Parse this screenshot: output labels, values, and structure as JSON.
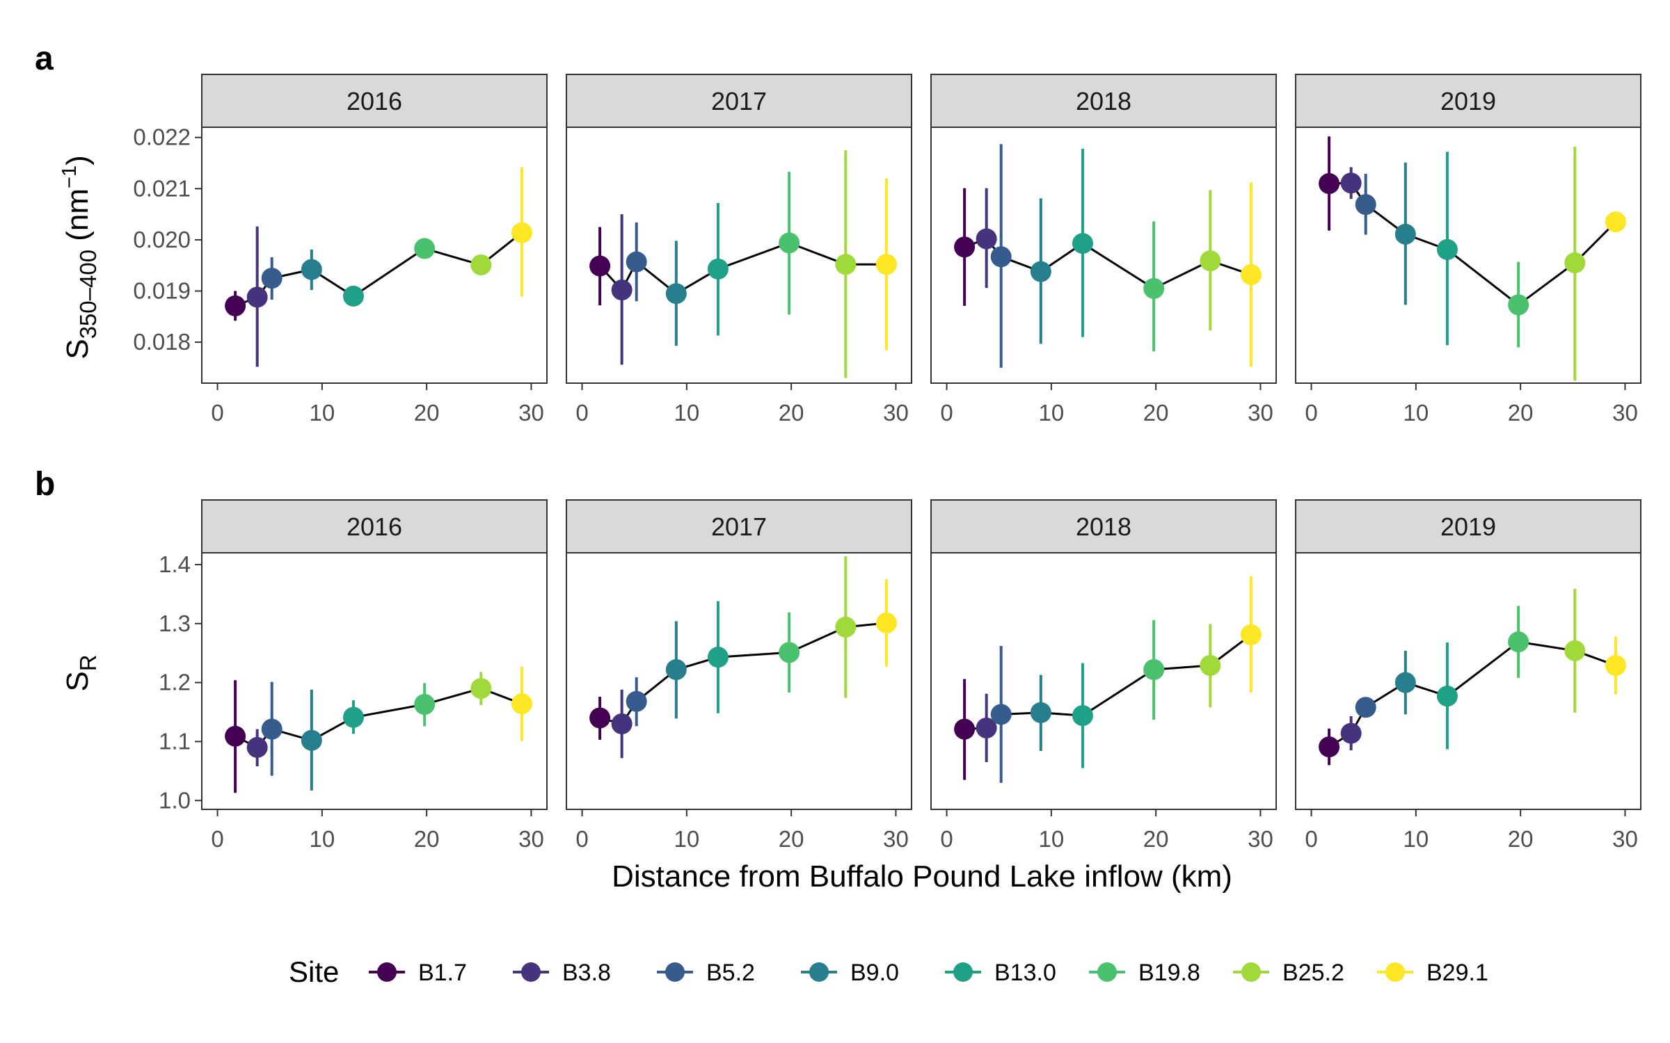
{
  "figure": {
    "panel_labels": [
      "a",
      "b"
    ],
    "x_axis_title": "Distance from Buffalo Pound Lake inflow (km)",
    "y_axis_a": {
      "main": "S",
      "sub": "350–400",
      "unit_open": " (nm",
      "sup": "−1",
      "unit_close": ")"
    },
    "y_axis_b": {
      "main": "S",
      "sub": "R"
    },
    "legend_title": "Site"
  },
  "chart_data": [
    {
      "type": "line",
      "panel": "a",
      "facets": [
        "2016",
        "2017",
        "2018",
        "2019"
      ],
      "xlim": [
        -1.5,
        31.5
      ],
      "ylim": [
        0.0172,
        0.0222
      ],
      "x_ticks": [
        0,
        10,
        20,
        30
      ],
      "y_ticks": [
        0.018,
        0.019,
        0.02,
        0.021,
        0.022
      ],
      "y_tick_labels": [
        "0.018",
        "0.019",
        "0.020",
        "0.021",
        "0.022"
      ],
      "grid": false,
      "series": [
        {
          "facet": "2016",
          "points": [
            {
              "site": "B1.7",
              "x": 1.7,
              "y": 0.01871,
              "lo": 0.01842,
              "hi": 0.019
            },
            {
              "site": "B3.8",
              "x": 3.8,
              "y": 0.01888,
              "lo": 0.01752,
              "hi": 0.02026
            },
            {
              "site": "B5.2",
              "x": 5.2,
              "y": 0.01925,
              "lo": 0.01883,
              "hi": 0.01966
            },
            {
              "site": "B9.0",
              "x": 9.0,
              "y": 0.01942,
              "lo": 0.01902,
              "hi": 0.01981
            },
            {
              "site": "B13.0",
              "x": 13.0,
              "y": 0.0189,
              "lo": 0.0189,
              "hi": 0.0189
            },
            {
              "site": "B19.8",
              "x": 19.8,
              "y": 0.01983,
              "lo": 0.01983,
              "hi": 0.01983
            },
            {
              "site": "B25.2",
              "x": 25.2,
              "y": 0.01951,
              "lo": 0.01951,
              "hi": 0.01951
            },
            {
              "site": "B29.1",
              "x": 29.1,
              "y": 0.02014,
              "lo": 0.01889,
              "hi": 0.02142
            }
          ]
        },
        {
          "facet": "2017",
          "points": [
            {
              "site": "B1.7",
              "x": 1.7,
              "y": 0.01949,
              "lo": 0.01872,
              "hi": 0.02025
            },
            {
              "site": "B3.8",
              "x": 3.8,
              "y": 0.01902,
              "lo": 0.01756,
              "hi": 0.0205
            },
            {
              "site": "B5.2",
              "x": 5.2,
              "y": 0.01957,
              "lo": 0.0188,
              "hi": 0.02034
            },
            {
              "site": "B9.0",
              "x": 9.0,
              "y": 0.01895,
              "lo": 0.01793,
              "hi": 0.01998
            },
            {
              "site": "B13.0",
              "x": 13.0,
              "y": 0.01943,
              "lo": 0.01813,
              "hi": 0.02072
            },
            {
              "site": "B19.8",
              "x": 19.8,
              "y": 0.01994,
              "lo": 0.01854,
              "hi": 0.02133
            },
            {
              "site": "B25.2",
              "x": 25.2,
              "y": 0.01952,
              "lo": 0.0173,
              "hi": 0.02175
            },
            {
              "site": "B29.1",
              "x": 29.1,
              "y": 0.01952,
              "lo": 0.01784,
              "hi": 0.0212
            }
          ]
        },
        {
          "facet": "2018",
          "points": [
            {
              "site": "B1.7",
              "x": 1.7,
              "y": 0.01986,
              "lo": 0.01871,
              "hi": 0.02101
            },
            {
              "site": "B3.8",
              "x": 3.8,
              "y": 0.02002,
              "lo": 0.01906,
              "hi": 0.02101
            },
            {
              "site": "B5.2",
              "x": 5.2,
              "y": 0.01967,
              "lo": 0.0175,
              "hi": 0.02187
            },
            {
              "site": "B9.0",
              "x": 9.0,
              "y": 0.01938,
              "lo": 0.01797,
              "hi": 0.02081
            },
            {
              "site": "B13.0",
              "x": 13.0,
              "y": 0.01993,
              "lo": 0.0181,
              "hi": 0.02178
            },
            {
              "site": "B19.8",
              "x": 19.8,
              "y": 0.01905,
              "lo": 0.01782,
              "hi": 0.02036
            },
            {
              "site": "B25.2",
              "x": 25.2,
              "y": 0.01959,
              "lo": 0.01823,
              "hi": 0.02097
            },
            {
              "site": "B29.1",
              "x": 29.1,
              "y": 0.01932,
              "lo": 0.01752,
              "hi": 0.02112
            }
          ]
        },
        {
          "facet": "2019",
          "points": [
            {
              "site": "B1.7",
              "x": 1.7,
              "y": 0.0211,
              "lo": 0.02018,
              "hi": 0.02202
            },
            {
              "site": "B3.8",
              "x": 3.8,
              "y": 0.02111,
              "lo": 0.0208,
              "hi": 0.02142
            },
            {
              "site": "B5.2",
              "x": 5.2,
              "y": 0.02069,
              "lo": 0.0201,
              "hi": 0.02129
            },
            {
              "site": "B9.0",
              "x": 9.0,
              "y": 0.02011,
              "lo": 0.01873,
              "hi": 0.02151
            },
            {
              "site": "B13.0",
              "x": 13.0,
              "y": 0.01981,
              "lo": 0.01794,
              "hi": 0.02172
            },
            {
              "site": "B19.8",
              "x": 19.8,
              "y": 0.01873,
              "lo": 0.0179,
              "hi": 0.01957
            },
            {
              "site": "B25.2",
              "x": 25.2,
              "y": 0.01955,
              "lo": 0.01725,
              "hi": 0.02182
            },
            {
              "site": "B29.1",
              "x": 29.1,
              "y": 0.02035,
              "lo": 0.02035,
              "hi": 0.02035
            }
          ]
        }
      ]
    },
    {
      "type": "line",
      "panel": "b",
      "facets": [
        "2016",
        "2017",
        "2018",
        "2019"
      ],
      "xlim": [
        -1.5,
        31.5
      ],
      "ylim": [
        0.985,
        1.42
      ],
      "x_ticks": [
        0,
        10,
        20,
        30
      ],
      "y_ticks": [
        1.0,
        1.1,
        1.2,
        1.3,
        1.4
      ],
      "y_tick_labels": [
        "1.0",
        "1.1",
        "1.2",
        "1.3",
        "1.4"
      ],
      "grid": false,
      "series": [
        {
          "facet": "2016",
          "points": [
            {
              "site": "B1.7",
              "x": 1.7,
              "y": 1.109,
              "lo": 1.013,
              "hi": 1.204
            },
            {
              "site": "B3.8",
              "x": 3.8,
              "y": 1.09,
              "lo": 1.058,
              "hi": 1.121
            },
            {
              "site": "B5.2",
              "x": 5.2,
              "y": 1.121,
              "lo": 1.042,
              "hi": 1.201
            },
            {
              "site": "B9.0",
              "x": 9.0,
              "y": 1.102,
              "lo": 1.017,
              "hi": 1.188
            },
            {
              "site": "B13.0",
              "x": 13.0,
              "y": 1.141,
              "lo": 1.113,
              "hi": 1.17
            },
            {
              "site": "B19.8",
              "x": 19.8,
              "y": 1.163,
              "lo": 1.126,
              "hi": 1.199
            },
            {
              "site": "B25.2",
              "x": 25.2,
              "y": 1.19,
              "lo": 1.162,
              "hi": 1.218
            },
            {
              "site": "B29.1",
              "x": 29.1,
              "y": 1.164,
              "lo": 1.101,
              "hi": 1.227
            }
          ]
        },
        {
          "facet": "2017",
          "points": [
            {
              "site": "B1.7",
              "x": 1.7,
              "y": 1.14,
              "lo": 1.103,
              "hi": 1.176
            },
            {
              "site": "B3.8",
              "x": 3.8,
              "y": 1.13,
              "lo": 1.072,
              "hi": 1.188
            },
            {
              "site": "B5.2",
              "x": 5.2,
              "y": 1.168,
              "lo": 1.126,
              "hi": 1.209
            },
            {
              "site": "B9.0",
              "x": 9.0,
              "y": 1.222,
              "lo": 1.139,
              "hi": 1.304
            },
            {
              "site": "B13.0",
              "x": 13.0,
              "y": 1.243,
              "lo": 1.148,
              "hi": 1.338
            },
            {
              "site": "B19.8",
              "x": 19.8,
              "y": 1.251,
              "lo": 1.183,
              "hi": 1.319
            },
            {
              "site": "B25.2",
              "x": 25.2,
              "y": 1.294,
              "lo": 1.174,
              "hi": 1.414
            },
            {
              "site": "B29.1",
              "x": 29.1,
              "y": 1.301,
              "lo": 1.227,
              "hi": 1.375
            }
          ]
        },
        {
          "facet": "2018",
          "points": [
            {
              "site": "B1.7",
              "x": 1.7,
              "y": 1.121,
              "lo": 1.035,
              "hi": 1.206
            },
            {
              "site": "B3.8",
              "x": 3.8,
              "y": 1.123,
              "lo": 1.065,
              "hi": 1.181
            },
            {
              "site": "B5.2",
              "x": 5.2,
              "y": 1.146,
              "lo": 1.03,
              "hi": 1.262
            },
            {
              "site": "B9.0",
              "x": 9.0,
              "y": 1.149,
              "lo": 1.084,
              "hi": 1.213
            },
            {
              "site": "B13.0",
              "x": 13.0,
              "y": 1.144,
              "lo": 1.055,
              "hi": 1.233
            },
            {
              "site": "B19.8",
              "x": 19.8,
              "y": 1.222,
              "lo": 1.137,
              "hi": 1.306
            },
            {
              "site": "B25.2",
              "x": 25.2,
              "y": 1.229,
              "lo": 1.158,
              "hi": 1.299
            },
            {
              "site": "B29.1",
              "x": 29.1,
              "y": 1.281,
              "lo": 1.183,
              "hi": 1.38
            }
          ]
        },
        {
          "facet": "2019",
          "points": [
            {
              "site": "B1.7",
              "x": 1.7,
              "y": 1.091,
              "lo": 1.06,
              "hi": 1.122
            },
            {
              "site": "B3.8",
              "x": 3.8,
              "y": 1.114,
              "lo": 1.085,
              "hi": 1.143
            },
            {
              "site": "B5.2",
              "x": 5.2,
              "y": 1.158,
              "lo": 1.145,
              "hi": 1.171
            },
            {
              "site": "B9.0",
              "x": 9.0,
              "y": 1.2,
              "lo": 1.146,
              "hi": 1.254
            },
            {
              "site": "B13.0",
              "x": 13.0,
              "y": 1.177,
              "lo": 1.087,
              "hi": 1.268
            },
            {
              "site": "B19.8",
              "x": 19.8,
              "y": 1.269,
              "lo": 1.208,
              "hi": 1.33
            },
            {
              "site": "B25.2",
              "x": 25.2,
              "y": 1.254,
              "lo": 1.149,
              "hi": 1.359
            },
            {
              "site": "B29.1",
              "x": 29.1,
              "y": 1.229,
              "lo": 1.18,
              "hi": 1.278
            }
          ]
        }
      ]
    }
  ],
  "legend": {
    "placement": "bottom",
    "items": [
      {
        "label": "B1.7",
        "color": "#440154"
      },
      {
        "label": "B3.8",
        "color": "#46337E"
      },
      {
        "label": "B5.2",
        "color": "#365C8D"
      },
      {
        "label": "B9.0",
        "color": "#277F8E"
      },
      {
        "label": "B13.0",
        "color": "#1FA187"
      },
      {
        "label": "B19.8",
        "color": "#4AC16D"
      },
      {
        "label": "B25.2",
        "color": "#9FDA3A"
      },
      {
        "label": "B29.1",
        "color": "#FDE725"
      }
    ]
  },
  "colors": {
    "connector_line": "#000000",
    "strip_fill": "#D9D9D9",
    "panel_border": "#333333"
  }
}
